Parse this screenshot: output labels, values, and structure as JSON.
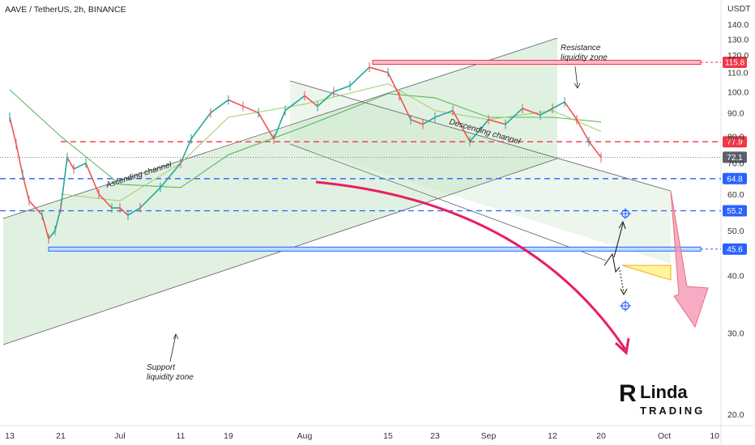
{
  "chart_data": {
    "type": "line",
    "title": "AAVE / TetherUS, 2h, BINANCE",
    "y_unit": "USDT",
    "y_scale": "log",
    "ylim": [
      18.5,
      142
    ],
    "x_ticks": [
      "13",
      "21",
      "Jul",
      "11",
      "19",
      "Aug",
      "15",
      "23",
      "Sep",
      "12",
      "20",
      "Oct",
      "10"
    ],
    "y_ticks": [
      "140.0",
      "130.0",
      "120.0",
      "110.0",
      "100.0",
      "90.0",
      "80.0",
      "70.0",
      "60.0",
      "50.0",
      "40.0",
      "30.0",
      "20.0"
    ],
    "price_series": [
      {
        "x": "13",
        "y": 88
      },
      {
        "x": "14",
        "y": 77
      },
      {
        "x": "15",
        "y": 66
      },
      {
        "x": "16",
        "y": 58
      },
      {
        "x": "18",
        "y": 54
      },
      {
        "x": "19",
        "y": 48
      },
      {
        "x": "20",
        "y": 50
      },
      {
        "x": "21",
        "y": 56
      },
      {
        "x": "22",
        "y": 72
      },
      {
        "x": "23",
        "y": 68
      },
      {
        "x": "25",
        "y": 70
      },
      {
        "x": "27",
        "y": 60
      },
      {
        "x": "29",
        "y": 56
      },
      {
        "x": "Jul",
        "y": 56
      },
      {
        "x": "Jul 3",
        "y": 54
      },
      {
        "x": "Jul 6",
        "y": 56
      },
      {
        "x": "Jul 9",
        "y": 62
      },
      {
        "x": "11",
        "y": 70
      },
      {
        "x": "Jul 14",
        "y": 79
      },
      {
        "x": "Jul 17",
        "y": 90
      },
      {
        "x": "19",
        "y": 96
      },
      {
        "x": "Jul 21",
        "y": 93
      },
      {
        "x": "Jul 24",
        "y": 90
      },
      {
        "x": "Jul 27",
        "y": 79
      },
      {
        "x": "Jul 29",
        "y": 91
      },
      {
        "x": "Aug",
        "y": 98
      },
      {
        "x": "Aug 3",
        "y": 93
      },
      {
        "x": "Aug 6",
        "y": 100
      },
      {
        "x": "Aug 9",
        "y": 103
      },
      {
        "x": "Aug 12",
        "y": 113
      },
      {
        "x": "15",
        "y": 110
      },
      {
        "x": "Aug 17",
        "y": 98
      },
      {
        "x": "Aug 19",
        "y": 87
      },
      {
        "x": "Aug 21",
        "y": 85
      },
      {
        "x": "23",
        "y": 88
      },
      {
        "x": "Aug 26",
        "y": 91
      },
      {
        "x": "Aug 29",
        "y": 78
      },
      {
        "x": "Sep",
        "y": 87
      },
      {
        "x": "Sep 4",
        "y": 85
      },
      {
        "x": "Sep 7",
        "y": 92
      },
      {
        "x": "Sep 10",
        "y": 89
      },
      {
        "x": "12",
        "y": 92
      },
      {
        "x": "Sep 14",
        "y": 95
      },
      {
        "x": "Sep 16",
        "y": 87
      },
      {
        "x": "Sep 18",
        "y": 78
      },
      {
        "x": "20",
        "y": 72
      }
    ],
    "moving_averages": [
      {
        "name": "",
        "color": "#4caf50",
        "values": [
          {
            "x": "13",
            "y": 101
          },
          {
            "x": "21",
            "y": 80
          },
          {
            "x": "Jul",
            "y": 63
          },
          {
            "x": "11",
            "y": 62
          },
          {
            "x": "19",
            "y": 73
          },
          {
            "x": "Aug",
            "y": 84
          },
          {
            "x": "15",
            "y": 99
          },
          {
            "x": "23",
            "y": 97
          },
          {
            "x": "Sep",
            "y": 88
          },
          {
            "x": "12",
            "y": 88
          },
          {
            "x": "20",
            "y": 86
          }
        ]
      },
      {
        "name": "",
        "color": "#9ccc65",
        "values": [
          {
            "x": "21",
            "y": 60
          },
          {
            "x": "Jul",
            "y": 58
          },
          {
            "x": "11",
            "y": 70
          },
          {
            "x": "19",
            "y": 88
          },
          {
            "x": "Aug",
            "y": 94
          },
          {
            "x": "15",
            "y": 104
          },
          {
            "x": "23",
            "y": 91
          },
          {
            "x": "Sep",
            "y": 87
          },
          {
            "x": "12",
            "y": 91
          },
          {
            "x": "20",
            "y": 82
          }
        ]
      }
    ],
    "horizontal_levels": [
      {
        "label": "115.8",
        "value": 115.8,
        "color": "#f23645"
      },
      {
        "label": "77.9",
        "value": 77.9,
        "color": "#f23645"
      },
      {
        "label": "72.1",
        "value": 72.1,
        "color": "#5d606b"
      },
      {
        "label": "64.8",
        "value": 64.8,
        "color": "#2962ff"
      },
      {
        "label": "55.2",
        "value": 55.2,
        "color": "#2962ff"
      },
      {
        "label": "45.6",
        "value": 45.6,
        "color": "#2962ff"
      }
    ],
    "annotations": [
      {
        "text": "Ascending channel"
      },
      {
        "text": "Descending channel"
      },
      {
        "text": "Resistance\nliquidity zone"
      },
      {
        "text": "Support\nliquidity zone"
      }
    ],
    "grid": false,
    "legend": "none"
  },
  "logo": {
    "line1": "Linda",
    "line2": "TRADING"
  },
  "colors": {
    "channel_fill": "#a5d6a7",
    "curve": "#e91e63",
    "projection": "#f48fb1",
    "triangle": "#fff59d"
  }
}
